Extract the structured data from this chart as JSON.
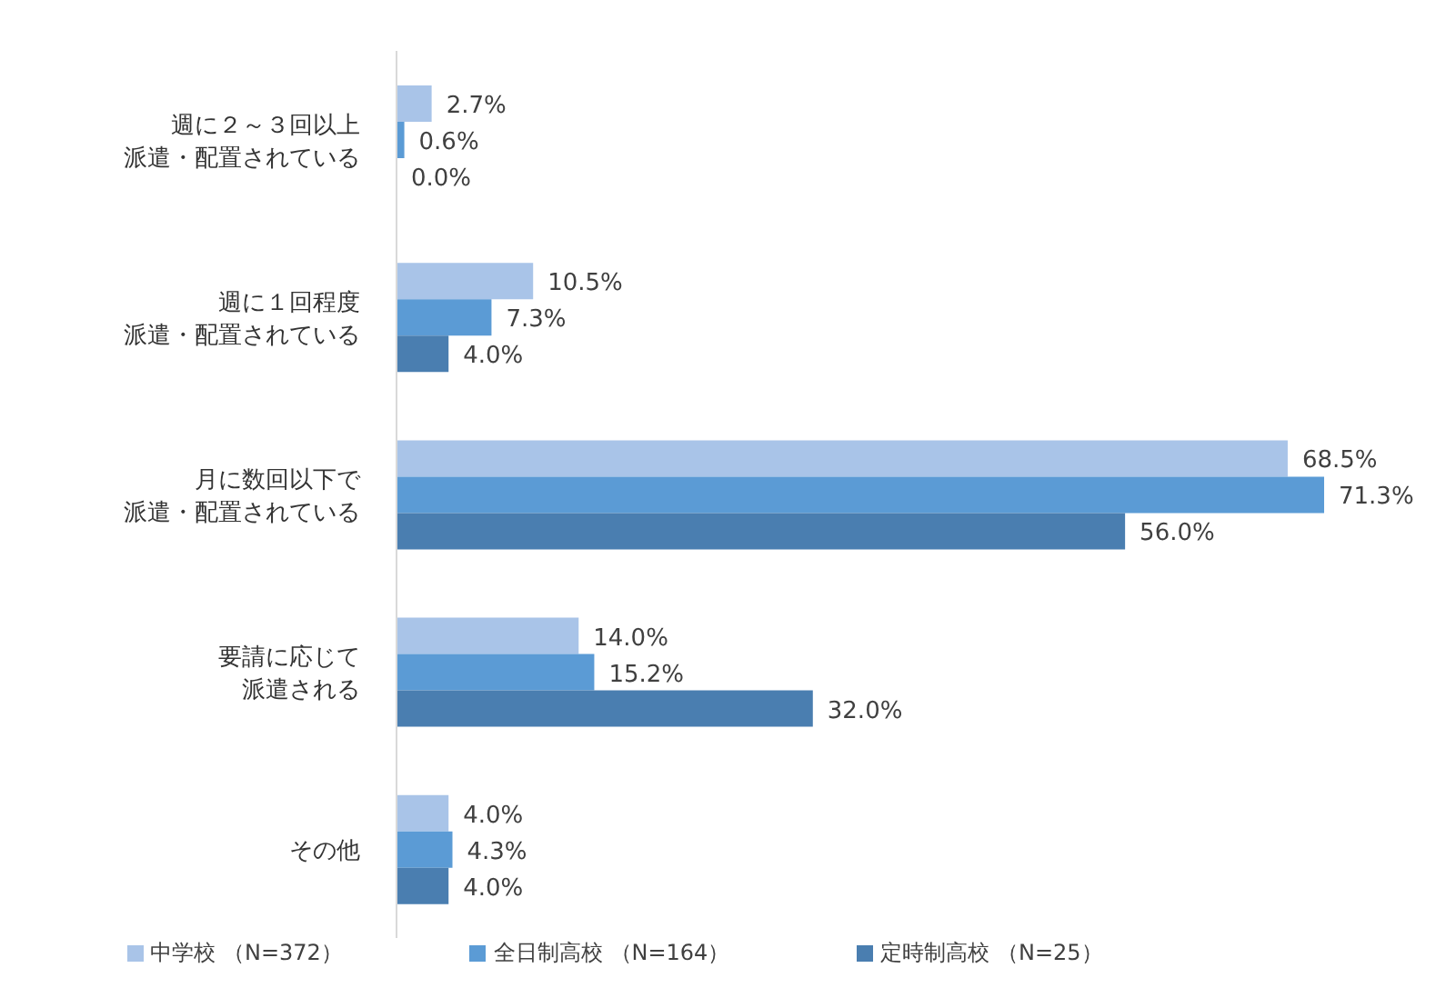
{
  "chart_data": {
    "type": "bar",
    "orientation": "horizontal",
    "categories": [
      "週に２～３回以上派遣・配置されている",
      "週に１回程度派遣・配置されている",
      "月に数回以下で派遣・配置されている",
      "要請に応じて派遣される",
      "その他"
    ],
    "series": [
      {
        "name": "中学校 （N=372）",
        "color": "#a9c4e8",
        "values": [
          2.7,
          10.5,
          68.5,
          14.0,
          4.0
        ],
        "value_labels": [
          "2.7%",
          "10.5%",
          "68.5%",
          "14.0%",
          "4.0%"
        ]
      },
      {
        "name": "全日制高校 （N=164）",
        "color": "#5b9bd5",
        "values": [
          0.6,
          7.3,
          71.3,
          15.2,
          4.3
        ],
        "value_labels": [
          "0.6%",
          "7.3%",
          "71.3%",
          "15.2%",
          "4.3%"
        ]
      },
      {
        "name": "定時制高校 （N=25）",
        "color": "#4a7eb0",
        "values": [
          0.0,
          4.0,
          56.0,
          32.0,
          4.0
        ],
        "value_labels": [
          "0.0%",
          "4.0%",
          "56.0%",
          "32.0%",
          "4.0%"
        ]
      }
    ],
    "legend": "bottom",
    "grid": false
  }
}
